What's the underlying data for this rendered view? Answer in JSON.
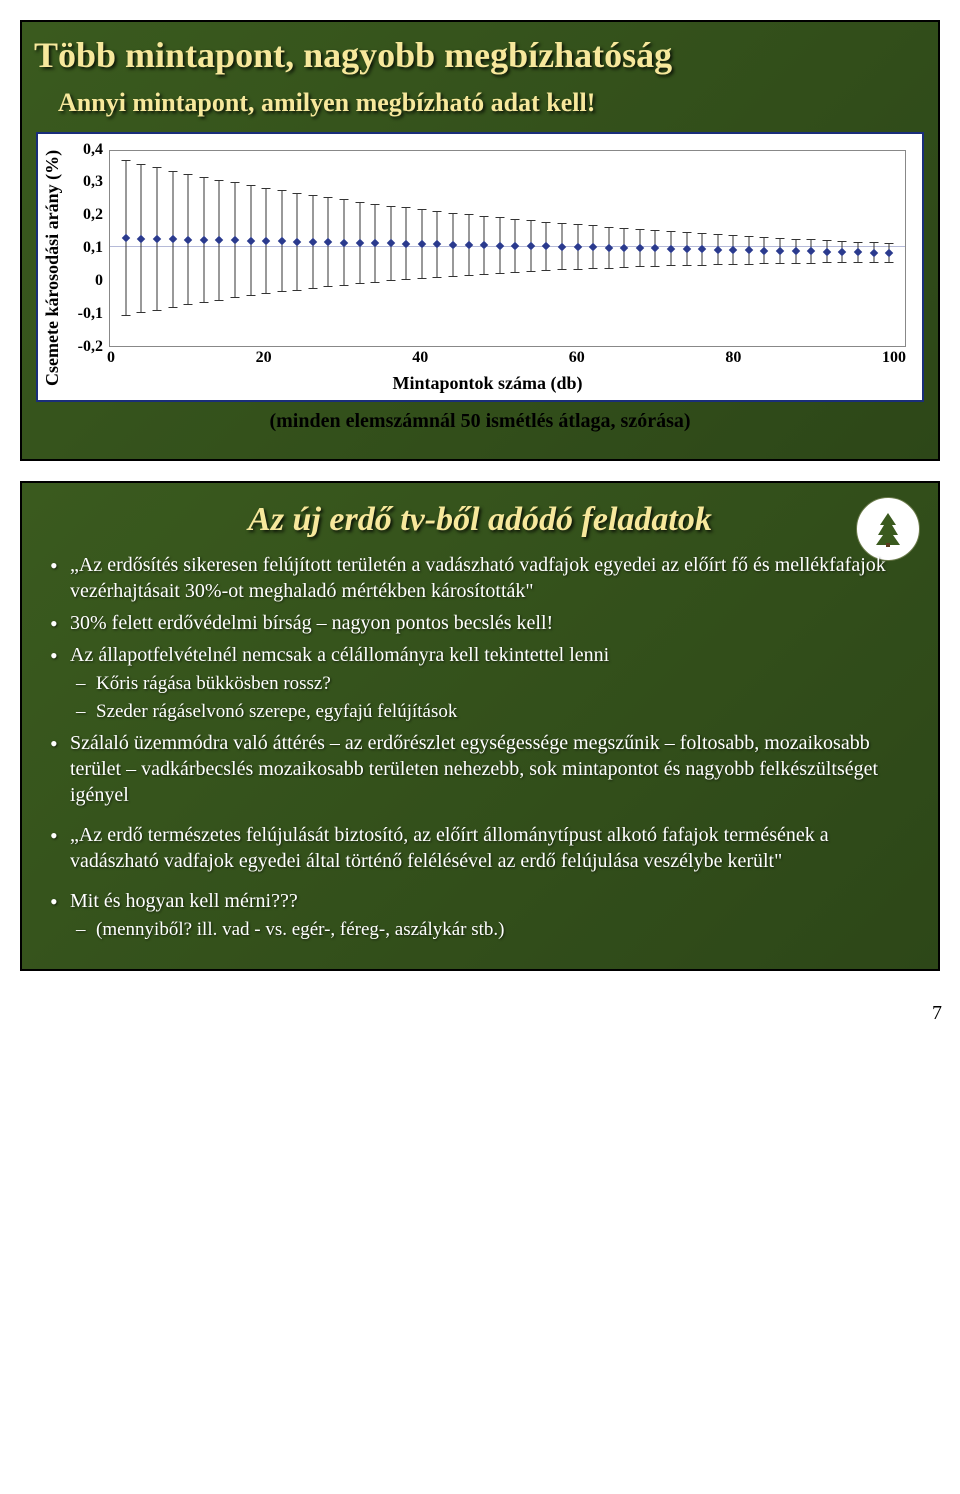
{
  "slide1": {
    "title": "Több mintapont, nagyobb megbízhatóság",
    "subtitle": "Annyi mintapont, amilyen megbízható adat kell!",
    "chart": {
      "type": "scatter-with-errorbars",
      "ylabel": "Csemete károsodási arány (%)",
      "xlabel": "Mintapontok száma (db)",
      "yticks": [
        "0,4",
        "0,3",
        "0,2",
        "0,1",
        "0",
        "-0,1",
        "-0,2"
      ],
      "xticks": [
        "0",
        "20",
        "40",
        "60",
        "80",
        "100"
      ],
      "ylim": [
        -0.2,
        0.4
      ],
      "xlim": [
        0,
        100
      ],
      "background_color": "#ffffff",
      "border_color": "#888888",
      "marker_color": "#2a3a8e",
      "errorbar_color": "#333333",
      "frame_border_color": "#1a2e7a",
      "n_points": 50,
      "mean_start": 0.13,
      "mean_end": 0.085,
      "err_start": 0.24,
      "err_end": 0.03
    },
    "caption": "(minden elemszámnál 50 ismétlés átlaga, szórása)"
  },
  "slide2": {
    "title": "Az új erdő tv-ből adódó feladatok",
    "bullets": [
      {
        "text": "„Az erdősítés sikeresen felújított területén a vadászható vadfajok egyedei az előírt fő és mellékfafajok vezérhajtásait 30%-ot meghaladó mértékben károsították\""
      },
      {
        "text": "30% felett erdővédelmi bírság – nagyon pontos becslés kell!"
      },
      {
        "text": "Az állapotfelvételnél nemcsak a célállományra kell tekintettel lenni",
        "subs": [
          "Kőris rágása bükkösben rossz?",
          "Szeder rágáselvonó szerepe, egyfajú felújítások"
        ]
      },
      {
        "text": "Szálaló üzemmódra való áttérés – az erdőrészlet egységessége megszűnik – foltosabb, mozaikosabb terület – vadkárbecslés mozaikosabb területen nehezebb, sok mintapontot és nagyobb felkészültséget igényel"
      },
      {
        "text": "„Az erdő természetes felújulását biztosító, az előírt állománytípust alkotó fafajok termésének a vadászható vadfajok egyedei által történő felélésével az erdő felújulása veszélybe került\""
      },
      {
        "text": "Mit és hogyan kell mérni???",
        "subs": [
          "(mennyiből? ill. vad - vs. egér-, féreg-, aszálykár stb.)"
        ]
      }
    ]
  },
  "page_number": "7",
  "colors": {
    "slide_bg_from": "#3a5a1e",
    "slide_bg_to": "#2d4718",
    "title_color": "#f7e89c",
    "text_color": "#ffffff"
  }
}
